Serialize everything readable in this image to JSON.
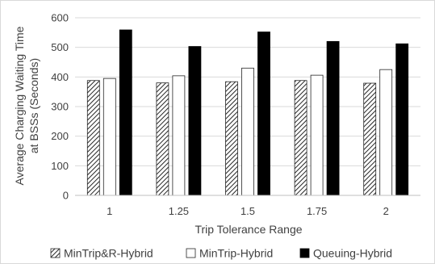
{
  "chart_data": {
    "type": "bar",
    "title": "",
    "xlabel": "Trip Tolerance Range",
    "ylabel_lines": [
      "Average Charging Waiting Time",
      "at BSSs (Seconds)"
    ],
    "categories": [
      "1",
      "1.25",
      "1.5",
      "1.75",
      "2"
    ],
    "ylim": [
      0,
      600
    ],
    "yticks": [
      0,
      100,
      200,
      300,
      400,
      500,
      600
    ],
    "grid": true,
    "legend_position": "bottom",
    "series": [
      {
        "name": "MinTrip&R-Hybrid",
        "values": [
          388,
          380,
          384,
          388,
          379
        ],
        "fill": "hatch"
      },
      {
        "name": "MinTrip-Hybrid",
        "values": [
          395,
          404,
          430,
          406,
          425
        ],
        "fill": "white"
      },
      {
        "name": "Queuing-Hybrid",
        "values": [
          559,
          503,
          552,
          520,
          512
        ],
        "fill": "black"
      }
    ]
  }
}
